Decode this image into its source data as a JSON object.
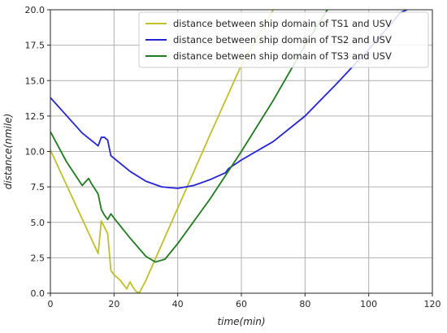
{
  "chart_data": {
    "type": "line",
    "xlabel": "time(min)",
    "ylabel": "distance(nmile)",
    "xlim": [
      0,
      120
    ],
    "ylim": [
      0,
      20
    ],
    "xticks": [
      0,
      20,
      40,
      60,
      80,
      100,
      120
    ],
    "yticks": [
      0.0,
      2.5,
      5.0,
      7.5,
      10.0,
      12.5,
      15.0,
      17.5,
      20.0
    ],
    "grid": true,
    "legend_position": "top-right",
    "series": [
      {
        "name": "distance between ship domain of TS1 and USV",
        "color": "#bfbf2a",
        "x": [
          0,
          15,
          16,
          18,
          19,
          20,
          22,
          24,
          25,
          26,
          27,
          28,
          30,
          40,
          50,
          60,
          70
        ],
        "y": [
          10.1,
          2.8,
          5.1,
          4.2,
          1.6,
          1.3,
          0.9,
          0.3,
          0.8,
          0.4,
          0.1,
          0.05,
          0.9,
          6.0,
          11.1,
          16.1,
          20.0
        ]
      },
      {
        "name": "distance between ship domain of TS2 and USV",
        "color": "#2424d4",
        "x": [
          0,
          10,
          15,
          16,
          17,
          18,
          19,
          25,
          30,
          35,
          40,
          45,
          50,
          55,
          56,
          60,
          70,
          80,
          90,
          100,
          110,
          112
        ],
        "y": [
          13.8,
          11.3,
          10.4,
          11.0,
          11.0,
          10.8,
          9.7,
          8.6,
          7.9,
          7.5,
          7.4,
          7.6,
          8.0,
          8.5,
          8.8,
          9.4,
          10.7,
          12.5,
          14.8,
          17.2,
          19.8,
          20.0
        ]
      },
      {
        "name": "distance between ship domain of TS3 and USV",
        "color": "#1e7b1e",
        "x": [
          0,
          5,
          10,
          12,
          13,
          15,
          16,
          17,
          18,
          19,
          20,
          25,
          30,
          33,
          36,
          40,
          50,
          60,
          70,
          80,
          87
        ],
        "y": [
          11.4,
          9.3,
          7.6,
          8.1,
          7.7,
          7.0,
          5.9,
          5.5,
          5.2,
          5.6,
          5.3,
          3.9,
          2.6,
          2.2,
          2.4,
          3.5,
          6.6,
          10.0,
          13.6,
          17.5,
          20.0
        ]
      }
    ]
  }
}
